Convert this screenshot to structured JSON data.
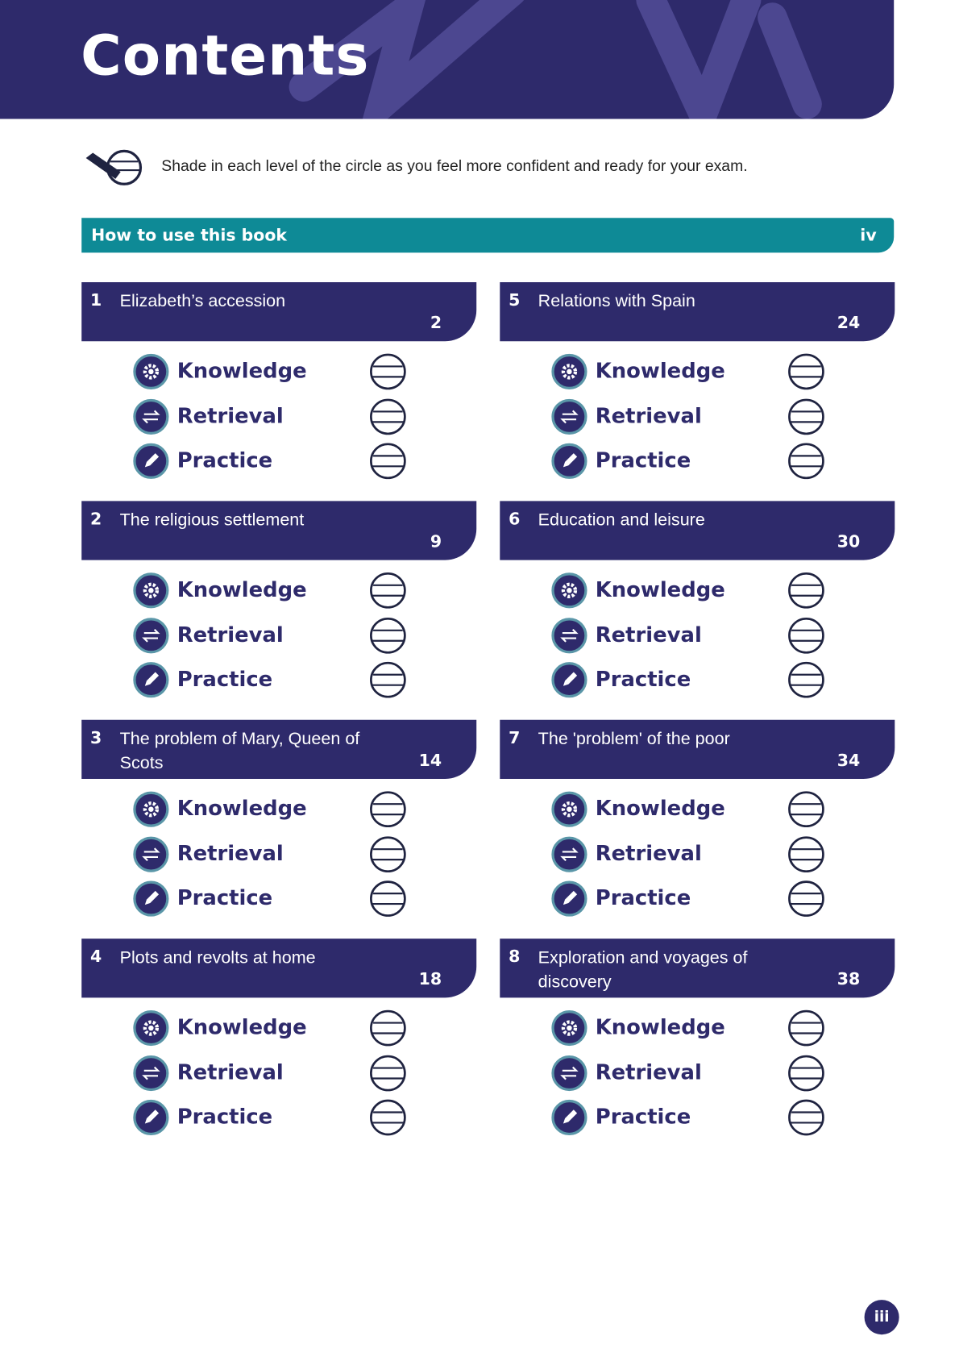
{
  "header": {
    "title": "Contents"
  },
  "instruction": "Shade in each level of the circle as you feel more confident and ready for your exam.",
  "how_to_use": {
    "label": "How to use this book",
    "page": "iv"
  },
  "levels": [
    "Knowledge",
    "Retrieval",
    "Practice"
  ],
  "sections": [
    {
      "number": "1",
      "title": "Elizabeth’s accession",
      "page": "2"
    },
    {
      "number": "2",
      "title": "The religious settlement",
      "page": "9"
    },
    {
      "number": "3",
      "title": "The problem of Mary, Queen of Scots",
      "page": "14"
    },
    {
      "number": "4",
      "title": "Plots and revolts at home",
      "page": "18"
    },
    {
      "number": "5",
      "title": "Relations with Spain",
      "page": "24"
    },
    {
      "number": "6",
      "title": "Education and leisure",
      "page": "30"
    },
    {
      "number": "7",
      "title": "The 'problem' of the poor",
      "page": "34"
    },
    {
      "number": "8",
      "title": "Exploration and voyages of discovery",
      "page": "38"
    }
  ],
  "footer": {
    "page": "iii"
  }
}
